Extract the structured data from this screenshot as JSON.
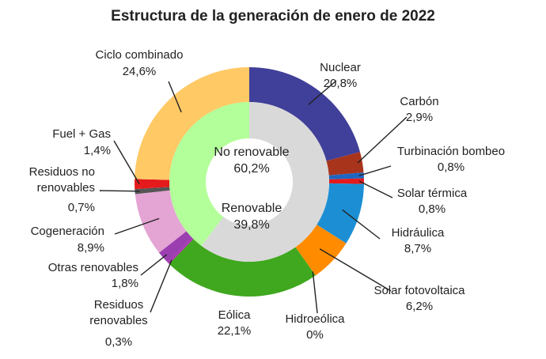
{
  "chart_data": {
    "type": "pie",
    "title": "Estructura de la generación de enero de 2022",
    "inner_ring": [
      {
        "name": "No renovable",
        "value": 60.2,
        "label": "60,2%",
        "color": "#d9d9d9"
      },
      {
        "name": "Renovable",
        "value": 39.8,
        "label": "39,8%",
        "color": "#b3ff99"
      }
    ],
    "outer_ring": [
      {
        "name": "Nuclear",
        "value": 20.8,
        "label": "20,8%",
        "color": "#403f99"
      },
      {
        "name": "Carbón",
        "value": 2.9,
        "label": "2,9%",
        "color": "#a8341c"
      },
      {
        "name": "Turbinación bombeo",
        "value": 0.8,
        "label": "0,8%",
        "color": "#1f66c0"
      },
      {
        "name": "Solar térmica",
        "value": 0.8,
        "label": "0,8%",
        "color": "#e41a1c"
      },
      {
        "name": "Hidráulica",
        "value": 8.7,
        "label": "8,7%",
        "color": "#1c8fd4"
      },
      {
        "name": "Solar fotovoltaica",
        "value": 6.2,
        "label": "6,2%",
        "color": "#ff8c00"
      },
      {
        "name": "Hidroeólica",
        "value": 0,
        "label": "0%",
        "color": "#2aa02a"
      },
      {
        "name": "Eólica",
        "value": 22.1,
        "label": "22,1%",
        "color": "#3fa81e"
      },
      {
        "name": "Residuos renovables",
        "value": 0.3,
        "label": "0,3%",
        "color": "#b030b0"
      },
      {
        "name": "Otras renovables",
        "value": 1.8,
        "label": "1,8%",
        "color": "#9b3fb0"
      },
      {
        "name": "Cogeneración",
        "value": 8.9,
        "label": "8,9%",
        "color": "#e4a4d4"
      },
      {
        "name": "Residuos no renovables",
        "value": 0.7,
        "label": "0,7%",
        "color": "#555555"
      },
      {
        "name": "Fuel + Gas",
        "value": 1.4,
        "label": "1,4%",
        "color": "#e41a1c"
      },
      {
        "name": "Ciclo combinado",
        "value": 24.6,
        "label": "24,6%",
        "color": "#ffc966"
      }
    ]
  }
}
